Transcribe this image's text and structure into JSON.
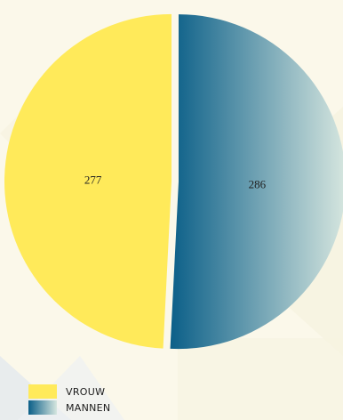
{
  "chart_data": {
    "type": "pie",
    "title": "",
    "slices": [
      {
        "label": "VROUW",
        "value": 277,
        "color": "#ffea5a"
      },
      {
        "label": "MANNEN",
        "value": 286,
        "color": "#0b5f88",
        "gradient_to": "#d6e6df"
      }
    ],
    "legend_position": "bottom-left"
  },
  "legend": {
    "items": [
      {
        "label": "VROUW"
      },
      {
        "label": "MANNEN"
      }
    ]
  },
  "colors": {
    "background": "#fbf8ea",
    "accent_yellow": "#ffea5a",
    "accent_teal": "#0b5f88"
  }
}
